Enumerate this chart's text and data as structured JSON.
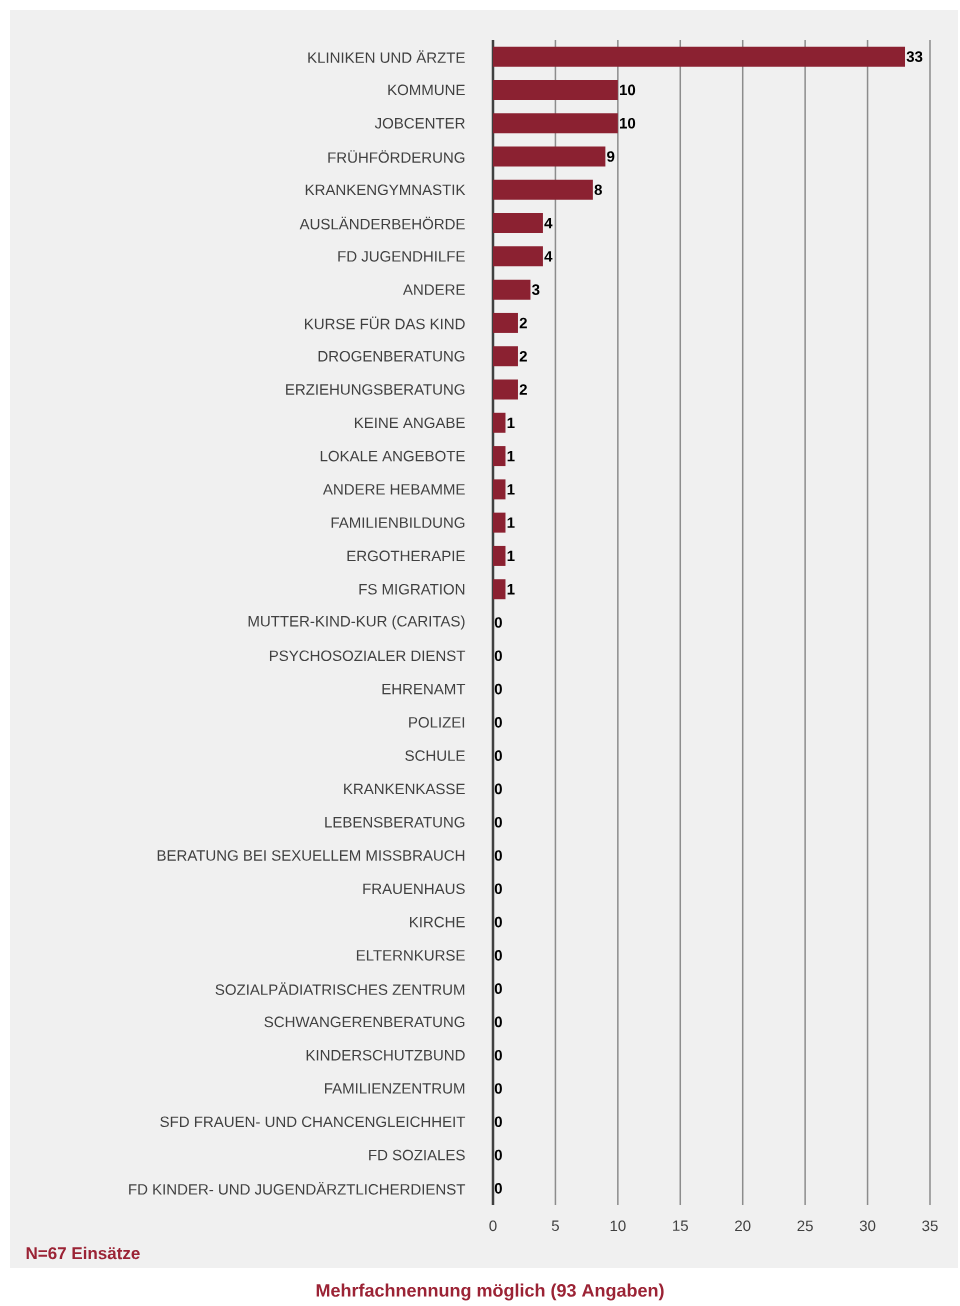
{
  "chart_data": {
    "type": "bar",
    "orientation": "horizontal",
    "categories": [
      "KLINIKEN UND ÄRZTE",
      "KOMMUNE",
      "JOBCENTER",
      "FRÜHFÖRDERUNG",
      "KRANKENGYMNASTIK",
      "AUSLÄNDERBEHÖRDE",
      "FD JUGENDHILFE",
      "ANDERE",
      "KURSE FÜR DAS KIND",
      "DROGENBERATUNG",
      "ERZIEHUNGSBERATUNG",
      "KEINE ANGABE",
      "LOKALE ANGEBOTE",
      "ANDERE HEBAMME",
      "FAMILIENBILDUNG",
      "ERGOTHERAPIE",
      "FS MIGRATION",
      "MUTTER-KIND-KUR (CARITAS)",
      "PSYCHOSOZIALER DIENST",
      "EHRENAMT",
      "POLIZEI",
      "SCHULE",
      "KRANKENKASSE",
      "LEBENSBERATUNG",
      "BERATUNG BEI SEXUELLEM MISSBRAUCH",
      "FRAUENHAUS",
      "KIRCHE",
      "ELTERNKURSE",
      "SOZIALPÄDIATRISCHES ZENTRUM",
      "SCHWANGERENBERATUNG",
      "KINDERSCHUTZBUND",
      "FAMILIENZENTRUM",
      "SFD FRAUEN- UND CHANCENGLEICHHEIT",
      "FD SOZIALES",
      "FD KINDER- UND JUGENDÄRZTLICHERDIENST"
    ],
    "values": [
      33,
      10,
      10,
      9,
      8,
      4,
      4,
      3,
      2,
      2,
      2,
      1,
      1,
      1,
      1,
      1,
      1,
      0,
      0,
      0,
      0,
      0,
      0,
      0,
      0,
      0,
      0,
      0,
      0,
      0,
      0,
      0,
      0,
      0,
      0
    ],
    "color": "#8b2131",
    "data_labels": true,
    "grid": "x",
    "xlim": [
      0,
      35
    ],
    "xticks": [
      0,
      5,
      10,
      15,
      20,
      25,
      30,
      35
    ],
    "annotations": [
      "N=67 Einsätze",
      "Mehrfachnennung möglich (93 Angaben)"
    ]
  }
}
